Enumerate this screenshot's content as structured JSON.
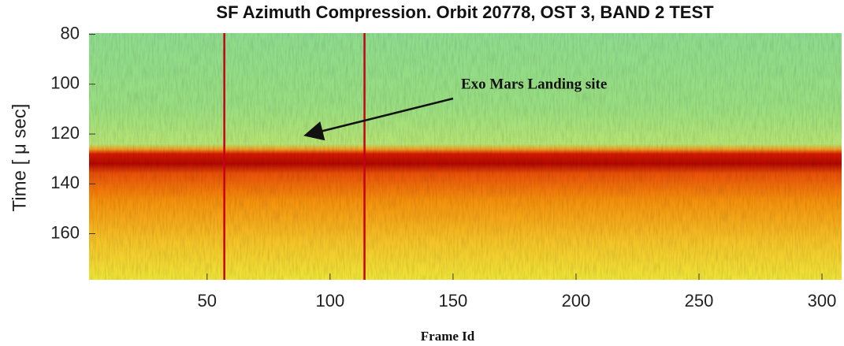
{
  "chart_data": {
    "type": "heatmap",
    "title": "SF Azimuth Compression. Orbit 20778, OST 3, BAND 2 TEST",
    "xlabel": "Frame Id",
    "ylabel": "Time [ μ sec]",
    "xlim": [
      2,
      308
    ],
    "xticks": [
      50,
      100,
      150,
      200,
      250,
      300
    ],
    "ylim": [
      79.5,
      178.5
    ],
    "yticks": [
      80,
      100,
      120,
      140,
      160
    ],
    "y_inverted": true,
    "markers": {
      "x": [
        57,
        114
      ],
      "color": "#c8001a"
    },
    "annotation": "Exo Mars Landing site"
  }
}
